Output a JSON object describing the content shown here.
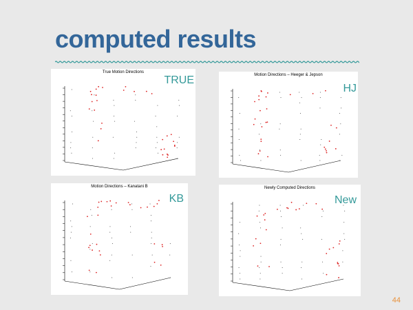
{
  "slide": {
    "title": "computed results",
    "page_number": "44",
    "accent_color": "#339999",
    "title_color": "#336699"
  },
  "panels": [
    {
      "plot_title": "True Motion Directions",
      "tag": "TRUE"
    },
    {
      "plot_title": "Motion Directions – Heeger & Jepson",
      "tag": "HJ"
    },
    {
      "plot_title": "Motion Directions – Kanatani B",
      "tag": "KB"
    },
    {
      "plot_title": "Newly Computed Directions",
      "tag": "New"
    }
  ]
}
